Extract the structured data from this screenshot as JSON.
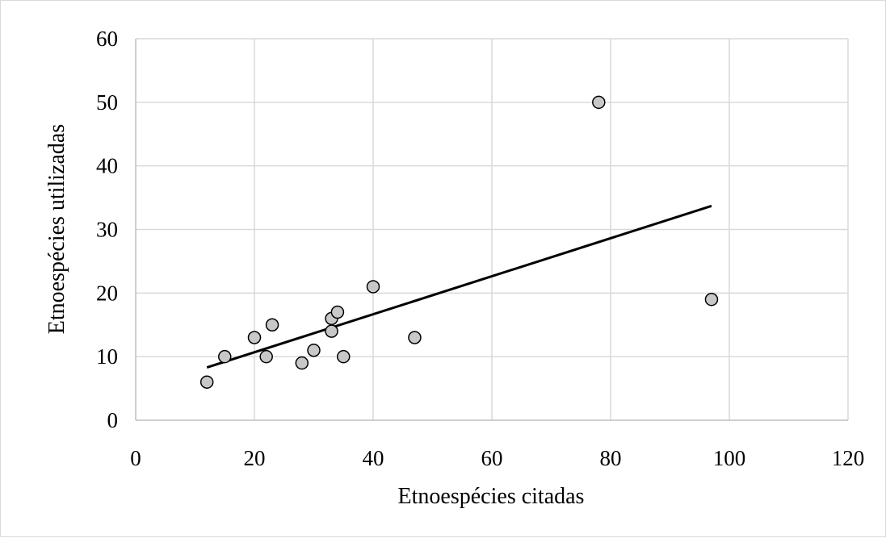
{
  "chart_data": {
    "type": "scatter",
    "title": "",
    "xlabel": "Etnoespécies citadas",
    "ylabel": "Etnoespécies utilizadas",
    "xlim": [
      0,
      120
    ],
    "ylim": [
      0,
      60
    ],
    "xticks": [
      0,
      20,
      40,
      60,
      80,
      100,
      120
    ],
    "yticks": [
      0,
      10,
      20,
      30,
      40,
      50,
      60
    ],
    "grid": true,
    "legend": "none",
    "series": [
      {
        "marker_color": "#c8c8c8",
        "marker_edge": "#000000",
        "points": [
          {
            "x": 12,
            "y": 6
          },
          {
            "x": 15,
            "y": 10
          },
          {
            "x": 20,
            "y": 13
          },
          {
            "x": 22,
            "y": 10
          },
          {
            "x": 23,
            "y": 15
          },
          {
            "x": 28,
            "y": 9
          },
          {
            "x": 30,
            "y": 11
          },
          {
            "x": 33,
            "y": 14
          },
          {
            "x": 33,
            "y": 16
          },
          {
            "x": 34,
            "y": 17
          },
          {
            "x": 35,
            "y": 10
          },
          {
            "x": 40,
            "y": 21
          },
          {
            "x": 47,
            "y": 13
          },
          {
            "x": 78,
            "y": 50
          },
          {
            "x": 97,
            "y": 19
          }
        ]
      }
    ],
    "trendline": {
      "type": "linear",
      "color": "#000000",
      "from": {
        "x": 12,
        "y": 8.3
      },
      "to": {
        "x": 97,
        "y": 33.7
      }
    },
    "colors": {
      "grid": "#d9d9d9",
      "axis": "#bfbfbf"
    }
  }
}
